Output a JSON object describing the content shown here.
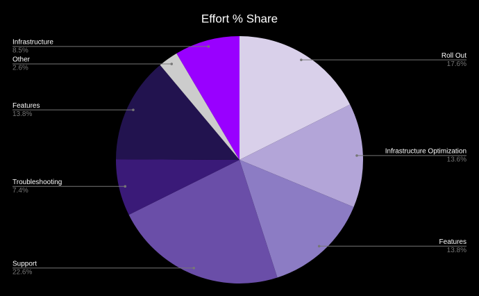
{
  "chart_data": {
    "type": "pie",
    "title": "Effort % Share",
    "categories": [
      "Roll Out",
      "Infrastructure Optimization",
      "Features",
      "Support",
      "Troubleshooting",
      "Features",
      "Other",
      "Infrastructure"
    ],
    "values": [
      17.6,
      13.6,
      13.8,
      22.6,
      7.4,
      13.8,
      2.6,
      8.5
    ],
    "value_labels": [
      "17.6%",
      "13.6%",
      "13.8%",
      "22.6%",
      "7.4%",
      "13.8%",
      "2.6%",
      "8.5%"
    ],
    "colors": [
      "#d9d0ea",
      "#b3a5d8",
      "#8c7cc4",
      "#6a4ea8",
      "#3a1a78",
      "#22134f",
      "#cccccc",
      "#9900ff"
    ]
  }
}
